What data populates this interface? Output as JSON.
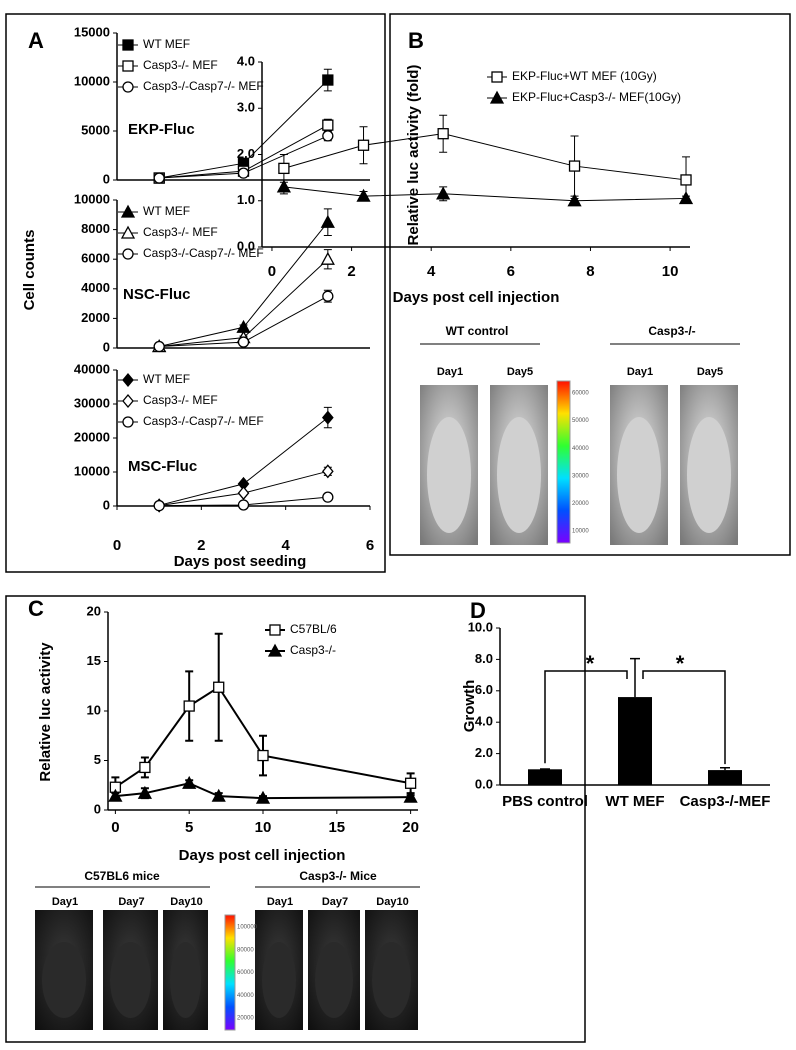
{
  "chart_data": [
    {
      "type": "line",
      "label": "A",
      "ylabel": "Cell counts",
      "annotation": "EKP-Fluc",
      "x": [
        1,
        3,
        5
      ],
      "xlim": [
        0,
        6
      ],
      "ylim": [
        0,
        15000
      ],
      "yticks": [
        0,
        5000,
        10000,
        15000
      ],
      "series": [
        {
          "name": "WT MEF",
          "color": "#000000",
          "marker": "square",
          "filled": true,
          "values": [
            200,
            1700,
            10200
          ],
          "errors": [
            100,
            150,
            1100
          ]
        },
        {
          "name": "Casp3-/- MEF",
          "color": "#000000",
          "marker": "square",
          "filled": false,
          "values": [
            200,
            900,
            5600
          ],
          "errors": [
            100,
            150,
            600
          ]
        },
        {
          "name": "Casp3-/-Casp7-/- MEF",
          "color": "#000000",
          "marker": "circle",
          "filled": false,
          "values": [
            200,
            700,
            4500
          ],
          "errors": [
            100,
            150,
            500
          ]
        }
      ]
    },
    {
      "type": "line",
      "annotation": "NSC-Fluc",
      "x": [
        1,
        3,
        5
      ],
      "xlim": [
        0,
        6
      ],
      "ylim": [
        0,
        10000
      ],
      "yticks": [
        0,
        2000,
        4000,
        6000,
        8000,
        10000
      ],
      "series": [
        {
          "name": "WT MEF",
          "color": "#000000",
          "marker": "triangle",
          "filled": true,
          "values": [
            100,
            1400,
            8500
          ],
          "errors": [
            50,
            150,
            900
          ]
        },
        {
          "name": "Casp3-/- MEF",
          "color": "#000000",
          "marker": "triangle",
          "filled": false,
          "values": [
            100,
            700,
            6000
          ],
          "errors": [
            50,
            100,
            650
          ]
        },
        {
          "name": "Casp3-/-Casp7-/- MEF",
          "color": "#000000",
          "marker": "circle",
          "filled": false,
          "values": [
            100,
            400,
            3500
          ],
          "errors": [
            50,
            100,
            400
          ]
        }
      ]
    },
    {
      "type": "line",
      "annotation": "MSC-Fluc",
      "xlabel": "Days post seeding",
      "x": [
        1,
        3,
        5
      ],
      "xlim": [
        0,
        6
      ],
      "xticks": [
        0,
        2,
        4,
        6
      ],
      "ylim": [
        0,
        40000
      ],
      "yticks": [
        0,
        10000,
        20000,
        30000,
        40000
      ],
      "series": [
        {
          "name": "WT MEF",
          "color": "#000000",
          "marker": "diamond",
          "filled": true,
          "values": [
            200,
            6500,
            26000
          ],
          "errors": [
            100,
            400,
            3000
          ]
        },
        {
          "name": "Casp3-/- MEF",
          "color": "#000000",
          "marker": "diamond",
          "filled": false,
          "values": [
            100,
            3800,
            10200
          ],
          "errors": [
            100,
            300,
            1200
          ]
        },
        {
          "name": "Casp3-/-Casp7-/- MEF",
          "color": "#000000",
          "marker": "circle",
          "filled": false,
          "values": [
            100,
            300,
            2600
          ],
          "errors": [
            100,
            100,
            300
          ]
        }
      ]
    },
    {
      "type": "line",
      "label": "B",
      "ylabel": "Relative luc activity (fold)",
      "xlabel": "Days post cell injection",
      "x": [
        0.3,
        2.3,
        4.3,
        7.6,
        10.4
      ],
      "xlim": [
        -0.25,
        10.5
      ],
      "xticks": [
        0,
        2,
        4,
        6,
        8,
        10
      ],
      "ylim": [
        0,
        4
      ],
      "yticks": [
        {
          "value": 0,
          "label": "0.0"
        },
        {
          "value": 1,
          "label": "1.0"
        },
        {
          "value": 2,
          "label": "2.0"
        },
        {
          "value": 3,
          "label": "3.0"
        },
        {
          "value": 4,
          "label": "4.0"
        }
      ],
      "series": [
        {
          "name": "EKP-Fluc+WT MEF (10Gy)",
          "color": "#000000",
          "marker": "square",
          "filled": false,
          "values": [
            1.7,
            2.2,
            2.45,
            1.75,
            1.45
          ],
          "errors": [
            0.3,
            0.4,
            0.4,
            0.65,
            0.5
          ]
        },
        {
          "name": "EKP-Fluc+Casp3-/- MEF(10Gy)",
          "color": "#000000",
          "marker": "triangle",
          "filled": true,
          "values": [
            1.3,
            1.1,
            1.15,
            1.0,
            1.05
          ],
          "errors": [
            0.15,
            0.1,
            0.15,
            0.05,
            0.05
          ]
        }
      ],
      "images": [
        {
          "title": "WT control",
          "days": [
            "Day1",
            "Day5"
          ]
        },
        {
          "title": "Casp3-/-",
          "days": [
            "Day1",
            "Day5"
          ]
        }
      ],
      "colorbar_ticks": [
        10000,
        20000,
        30000,
        40000,
        50000,
        60000
      ]
    },
    {
      "type": "line",
      "label": "C",
      "ylabel": "Relative luc activity",
      "xlabel": "Days post cell injection",
      "line_width": 2,
      "x": [
        0,
        2,
        5,
        7,
        10,
        20
      ],
      "xlim": [
        -0.5,
        20.5
      ],
      "xticks": [
        0,
        5,
        10,
        15,
        20
      ],
      "ylim": [
        0,
        20
      ],
      "yticks": [
        0,
        5,
        10,
        15,
        20
      ],
      "series": [
        {
          "name": "C57BL/6",
          "color": "#000000",
          "marker": "square",
          "filled": false,
          "values": [
            2.3,
            4.3,
            10.5,
            12.4,
            5.5,
            2.7
          ],
          "errors": [
            1.0,
            1.0,
            3.5,
            5.4,
            2.0,
            1.0
          ]
        },
        {
          "name": "Casp3-/-",
          "color": "#000000",
          "marker": "triangle",
          "filled": true,
          "values": [
            1.4,
            1.7,
            2.7,
            1.4,
            1.2,
            1.3
          ],
          "errors": [
            0.3,
            0.5,
            0.3,
            0.3,
            0.2,
            0.2
          ]
        }
      ],
      "images": [
        {
          "title": "C57BL6 mice",
          "days": [
            "Day1",
            "Day7",
            "Day10"
          ]
        },
        {
          "title": "Casp3-/- Mice",
          "days": [
            "Day1",
            "Day7",
            "Day10"
          ]
        }
      ],
      "colorbar_ticks": [
        20000,
        40000,
        60000,
        80000,
        100000
      ]
    },
    {
      "type": "bar",
      "label": "D",
      "ylabel": "Growth",
      "color": "#000000",
      "categories": [
        "PBS control",
        "WT MEF",
        "Casp3-/-MEF"
      ],
      "values": [
        1.0,
        5.6,
        0.95
      ],
      "errors": [
        0.02,
        2.45,
        0.15
      ],
      "ylim": [
        0,
        10
      ],
      "yticks": [
        {
          "value": 0,
          "label": "0.0"
        },
        {
          "value": 2,
          "label": "2.0"
        },
        {
          "value": 4,
          "label": "4.0"
        },
        {
          "value": 6,
          "label": "6.0"
        },
        {
          "value": 8,
          "label": "8.0"
        },
        {
          "value": 10,
          "label": "10.0"
        }
      ],
      "annotations": [
        "*",
        "*"
      ]
    }
  ]
}
